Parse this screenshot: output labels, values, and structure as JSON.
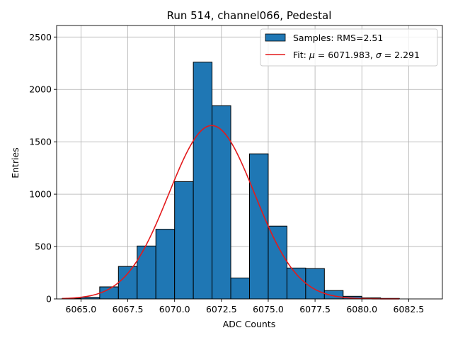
{
  "chart_data": {
    "type": "bar",
    "title": "Run 514, channel066, Pedestal",
    "xlabel": "ADC Counts",
    "ylabel": "Entries",
    "xlim": [
      6063.7,
      6084.3
    ],
    "ylim": [
      0,
      2610
    ],
    "grid": true,
    "legend_position": "top-right",
    "bin_width": 1.0,
    "x_ticks": [
      6065.0,
      6067.5,
      6070.0,
      6072.5,
      6075.0,
      6077.5,
      6080.0,
      6082.5
    ],
    "x_tick_labels": [
      "6065.0",
      "6067.5",
      "6070.0",
      "6072.5",
      "6075.0",
      "6077.5",
      "6080.0",
      "6082.5"
    ],
    "y_ticks": [
      0,
      500,
      1000,
      1500,
      2000,
      2500
    ],
    "y_tick_labels": [
      "0",
      "500",
      "1000",
      "1500",
      "2000",
      "2500"
    ],
    "histogram": {
      "name": "Samples: RMS=2.51",
      "color": "#1f77b4",
      "edge_color": "#000000",
      "bin_edges": [
        6064,
        6065,
        6066,
        6067,
        6068,
        6069,
        6070,
        6071,
        6072,
        6073,
        6074,
        6075,
        6076,
        6077,
        6078,
        6079,
        6080,
        6081,
        6082
      ],
      "counts": [
        5,
        15,
        115,
        310,
        505,
        665,
        1120,
        2260,
        1845,
        200,
        1385,
        695,
        295,
        290,
        80,
        25,
        10,
        5
      ]
    },
    "fit": {
      "name_prefix": "Fit: ",
      "mu_symbol": "μ",
      "mu_text": " = 6071.983, ",
      "sigma_symbol": "σ",
      "sigma_text": " = 2.291",
      "color": "#e31a1c",
      "mu": 6071.983,
      "sigma": 2.291,
      "amplitude": 1655,
      "x_range": [
        6064,
        6082
      ]
    }
  }
}
